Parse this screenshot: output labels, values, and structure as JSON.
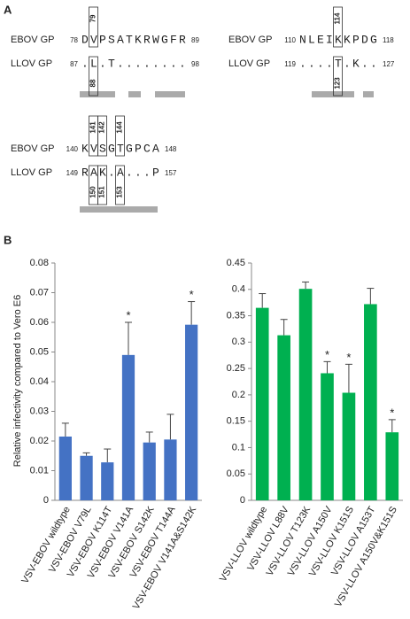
{
  "panel_a": {
    "label": "A",
    "alignments": [
      {
        "rows": [
          {
            "name": "EBOV GP",
            "start": 78,
            "sequence": "DVPSATKRWGFR",
            "end": 89
          },
          {
            "name": "LLOV GP",
            "start": 87,
            "sequence": ".L.T........",
            "end": 98
          }
        ],
        "top_positions": [
          79
        ],
        "bottom_positions": [
          88
        ]
      },
      {
        "rows": [
          {
            "name": "EBOV GP",
            "start": 110,
            "sequence": "NLEIKKPDG",
            "end": 118
          },
          {
            "name": "LLOV GP",
            "start": 119,
            "sequence": "....T.K..",
            "end": 127
          }
        ],
        "top_positions": [
          114
        ],
        "bottom_positions": [
          123
        ]
      },
      {
        "rows": [
          {
            "name": "EBOV GP",
            "start": 140,
            "sequence": "KVSGTGPCA",
            "end": 148
          },
          {
            "name": "LLOV GP",
            "start": 149,
            "sequence": "RAK.A...P",
            "end": 157
          }
        ],
        "top_positions": [
          141,
          142,
          144
        ],
        "bottom_positions": [
          150,
          151,
          153
        ]
      }
    ]
  },
  "panel_b": {
    "label": "B",
    "y_label": "Relative infectivity compared to Vero E6"
  },
  "chart_data": [
    {
      "type": "bar",
      "color": "#4472c4",
      "categories": [
        "VSV-EBOV wildtype",
        "VSV-EBOV V79L",
        "VSV-EBOV K114T",
        "VSV-EBOV V141A",
        "VSV-EBOV S142K",
        "VSV-EBOV T144A",
        "VSV-EBOV V141A&S142K"
      ],
      "values": [
        0.0215,
        0.015,
        0.0128,
        0.049,
        0.0195,
        0.0205,
        0.0592
      ],
      "errors": [
        0.0045,
        0.001,
        0.0045,
        0.011,
        0.0035,
        0.0085,
        0.0078
      ],
      "markers": [
        null,
        null,
        null,
        "*",
        null,
        null,
        "*"
      ],
      "ylim": [
        0,
        0.08
      ],
      "yticks": [
        0,
        0.01,
        0.02,
        0.03,
        0.04,
        0.05,
        0.06,
        0.07,
        0.08
      ]
    },
    {
      "type": "bar",
      "color": "#00b050",
      "categories": [
        "VSV-LLOV wildtype",
        "VSV-LLOV L88V",
        "VSV-LLOV T123K",
        "VSV-LLOV A150V",
        "VSV-LLOV K151S",
        "VSV-LLOV A153T",
        "VSV-LLOV A150V&K151S"
      ],
      "values": [
        0.365,
        0.313,
        0.401,
        0.241,
        0.204,
        0.372,
        0.129
      ],
      "errors": [
        0.027,
        0.03,
        0.013,
        0.022,
        0.054,
        0.03,
        0.024
      ],
      "markers": [
        null,
        null,
        null,
        "*",
        "*",
        null,
        "*"
      ],
      "ylim": [
        0,
        0.45
      ],
      "yticks": [
        0,
        0.05,
        0.1,
        0.15,
        0.2,
        0.25,
        0.3,
        0.35,
        0.4,
        0.45
      ]
    }
  ]
}
